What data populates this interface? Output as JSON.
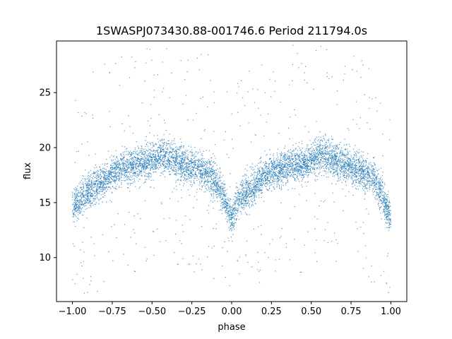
{
  "chart_data": {
    "type": "scatter",
    "title": "1SWASPJ073430.88-001746.6 Period 211794.0s",
    "xlabel": "phase",
    "ylabel": "flux",
    "xlim": [
      -1.1,
      1.1
    ],
    "ylim": [
      6.0,
      29.7
    ],
    "xticks": [
      -1.0,
      -0.75,
      -0.5,
      -0.25,
      0.0,
      0.25,
      0.5,
      0.75,
      1.0
    ],
    "xtick_labels": [
      "−1.00",
      "−0.75",
      "−0.50",
      "−0.25",
      "0.00",
      "0.25",
      "0.50",
      "0.75",
      "1.00"
    ],
    "yticks": [
      10,
      15,
      20,
      25
    ],
    "ytick_labels": [
      "10",
      "15",
      "20",
      "25"
    ],
    "grid": false,
    "marker_color": "#1f77b4",
    "series": [
      {
        "x": [
          -1.0,
          -0.9,
          -0.8,
          -0.7,
          -0.6,
          -0.5,
          -0.45,
          -0.4,
          -0.3,
          -0.2,
          -0.1,
          -0.05,
          0.0,
          0.05,
          0.1,
          0.15,
          0.2,
          0.3,
          0.4,
          0.5,
          0.55,
          0.6,
          0.7,
          0.8,
          0.9,
          0.95,
          1.0
        ],
        "values": [
          14.5,
          16.0,
          17.0,
          18.0,
          18.5,
          18.8,
          19.3,
          19.2,
          18.5,
          18.0,
          17.0,
          15.5,
          13.5,
          15.5,
          16.0,
          16.5,
          17.5,
          18.0,
          18.5,
          18.8,
          19.3,
          19.2,
          18.5,
          18.0,
          17.0,
          15.5,
          13.5
        ]
      }
    ]
  }
}
